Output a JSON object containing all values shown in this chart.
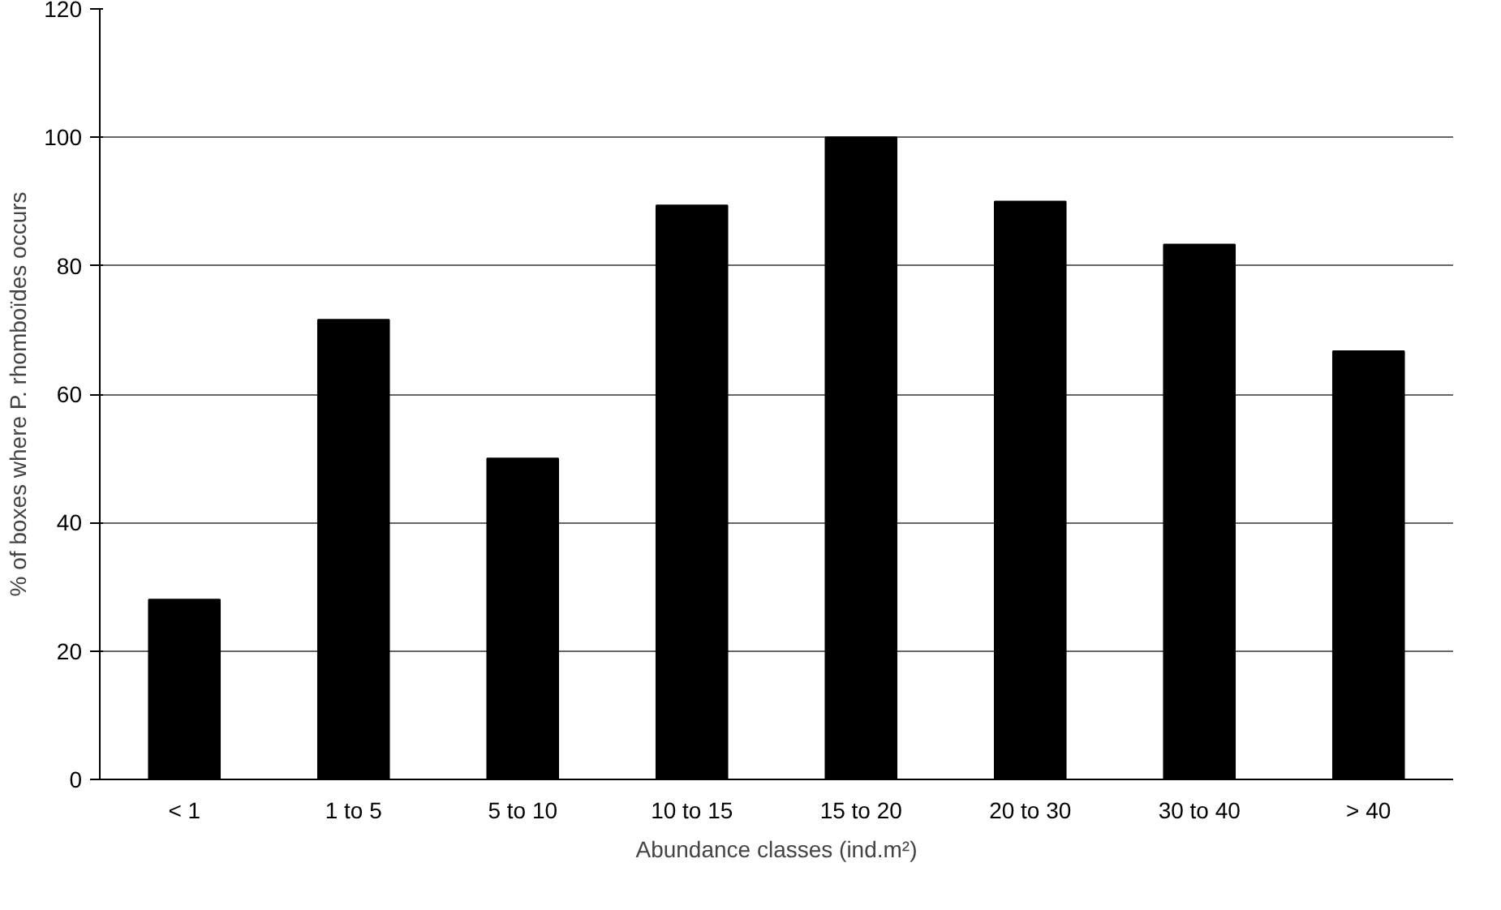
{
  "chart_data": {
    "type": "bar",
    "xlabel": "Abundance classes (ind.m²)",
    "ylabel": "% of boxes where P. rhomboïdes occurs",
    "categories": [
      "< 1",
      "1 to 5",
      "5 to 10",
      "10 to 15",
      "15 to 20",
      "20 to 30",
      "30 to 40",
      "> 40"
    ],
    "values": [
      28,
      71.6,
      50,
      89.4,
      100,
      90,
      83.3,
      66.7
    ],
    "color": "#000000",
    "ylim": [
      0,
      120
    ],
    "yticks": [
      0,
      20,
      40,
      60,
      80,
      100,
      120
    ],
    "grid": "y"
  }
}
